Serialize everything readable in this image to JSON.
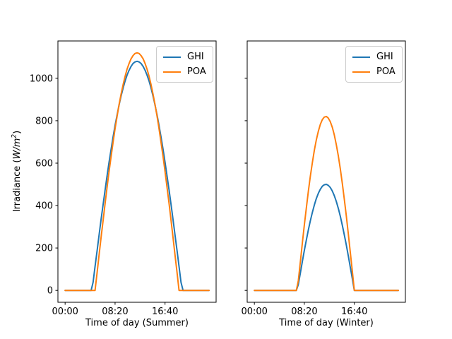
{
  "figure": {
    "background": "#ffffff"
  },
  "chart_data": [
    {
      "type": "line",
      "title": "",
      "xlabel": "Time of day (Summer)",
      "ylabel": {
        "prefix": "Irradiance (",
        "math": "W/m",
        "sup": "2",
        "suffix": ")"
      },
      "xlim": [
        -72,
        1511
      ],
      "ylim": [
        -56,
        1176
      ],
      "grid": false,
      "legend_position": "upper right",
      "xticks": {
        "positions": [
          0,
          500,
          1000
        ],
        "labels": [
          "00:00",
          "08:20",
          "16:40"
        ]
      },
      "yticks": [
        0,
        200,
        400,
        600,
        800,
        1000
      ],
      "show_ytick_labels": true,
      "x_minutes": [
        0,
        20,
        40,
        60,
        80,
        100,
        120,
        140,
        160,
        180,
        200,
        220,
        240,
        260,
        280,
        300,
        320,
        340,
        360,
        380,
        400,
        420,
        440,
        460,
        480,
        500,
        520,
        540,
        560,
        580,
        600,
        620,
        640,
        660,
        680,
        700,
        720,
        740,
        760,
        780,
        800,
        820,
        840,
        860,
        880,
        900,
        920,
        940,
        960,
        980,
        1000,
        1020,
        1040,
        1060,
        1080,
        1100,
        1120,
        1140,
        1160,
        1180,
        1200,
        1220,
        1240,
        1260,
        1280,
        1300,
        1320,
        1340,
        1360,
        1380,
        1400,
        1420,
        1440
      ],
      "series": [
        {
          "name": "GHI",
          "color": "#1f77b4",
          "values": [
            0,
            0,
            0,
            0,
            0,
            0,
            0,
            0,
            0,
            0,
            0,
            0,
            0,
            0,
            38,
            113,
            187,
            261,
            334,
            405,
            473,
            540,
            604,
            665,
            723,
            777,
            827,
            874,
            916,
            954,
            987,
            1015,
            1038,
            1056,
            1070,
            1077,
            1080,
            1077,
            1070,
            1056,
            1038,
            1015,
            987,
            954,
            916,
            874,
            827,
            777,
            723,
            665,
            604,
            540,
            473,
            405,
            334,
            261,
            187,
            113,
            38,
            0,
            0,
            0,
            0,
            0,
            0,
            0,
            0,
            0,
            0,
            0,
            0,
            0,
            0
          ]
        },
        {
          "name": "POA",
          "color": "#ff7f0e",
          "values": [
            0,
            0,
            0,
            0,
            0,
            0,
            0,
            0,
            0,
            0,
            0,
            0,
            0,
            0,
            0,
            0,
            84,
            167,
            249,
            330,
            409,
            486,
            560,
            631,
            698,
            762,
            821,
            876,
            925,
            970,
            1009,
            1043,
            1070,
            1092,
            1107,
            1117,
            1120,
            1117,
            1107,
            1092,
            1070,
            1043,
            1009,
            970,
            925,
            876,
            821,
            762,
            698,
            631,
            560,
            486,
            409,
            330,
            249,
            167,
            84,
            0,
            0,
            0,
            0,
            0,
            0,
            0,
            0,
            0,
            0,
            0,
            0,
            0,
            0,
            0,
            0
          ]
        }
      ]
    },
    {
      "type": "line",
      "title": "",
      "xlabel": "Time of day (Winter)",
      "xlim": [
        -72,
        1511
      ],
      "ylim": [
        -56,
        1176
      ],
      "grid": false,
      "legend_position": "upper right",
      "xticks": {
        "positions": [
          0,
          500,
          1000
        ],
        "labels": [
          "00:00",
          "08:20",
          "16:40"
        ]
      },
      "yticks": [
        0,
        200,
        400,
        600,
        800,
        1000
      ],
      "show_ytick_labels": false,
      "x_minutes": [
        0,
        20,
        40,
        60,
        80,
        100,
        120,
        140,
        160,
        180,
        200,
        220,
        240,
        260,
        280,
        300,
        320,
        340,
        360,
        380,
        400,
        420,
        440,
        460,
        480,
        500,
        520,
        540,
        560,
        580,
        600,
        620,
        640,
        660,
        680,
        700,
        720,
        740,
        760,
        780,
        800,
        820,
        840,
        860,
        880,
        900,
        920,
        940,
        960,
        980,
        1000,
        1020,
        1040,
        1060,
        1080,
        1100,
        1120,
        1140,
        1160,
        1180,
        1200,
        1220,
        1240,
        1260,
        1280,
        1300,
        1320,
        1340,
        1360,
        1380,
        1400,
        1420,
        1440
      ],
      "series": [
        {
          "name": "GHI",
          "color": "#1f77b4",
          "values": [
            0,
            0,
            0,
            0,
            0,
            0,
            0,
            0,
            0,
            0,
            0,
            0,
            0,
            0,
            0,
            0,
            0,
            0,
            0,
            0,
            0,
            0,
            28,
            82,
            136,
            188,
            238,
            285,
            328,
            368,
            403,
            433,
            458,
            477,
            491,
            498,
            500,
            495,
            485,
            468,
            446,
            419,
            386,
            349,
            307,
            262,
            213,
            162,
            109,
            55,
            0,
            0,
            0,
            0,
            0,
            0,
            0,
            0,
            0,
            0,
            0,
            0,
            0,
            0,
            0,
            0,
            0,
            0,
            0,
            0,
            0,
            0,
            0
          ]
        },
        {
          "name": "POA",
          "color": "#ff7f0e",
          "values": [
            0,
            0,
            0,
            0,
            0,
            0,
            0,
            0,
            0,
            0,
            0,
            0,
            0,
            0,
            0,
            0,
            0,
            0,
            0,
            0,
            0,
            0,
            46,
            135,
            223,
            308,
            390,
            467,
            538,
            603,
            661,
            710,
            751,
            783,
            805,
            817,
            820,
            812,
            795,
            768,
            732,
            687,
            633,
            572,
            504,
            430,
            350,
            266,
            179,
            90,
            0,
            0,
            0,
            0,
            0,
            0,
            0,
            0,
            0,
            0,
            0,
            0,
            0,
            0,
            0,
            0,
            0,
            0,
            0,
            0,
            0,
            0,
            0
          ]
        }
      ]
    }
  ]
}
